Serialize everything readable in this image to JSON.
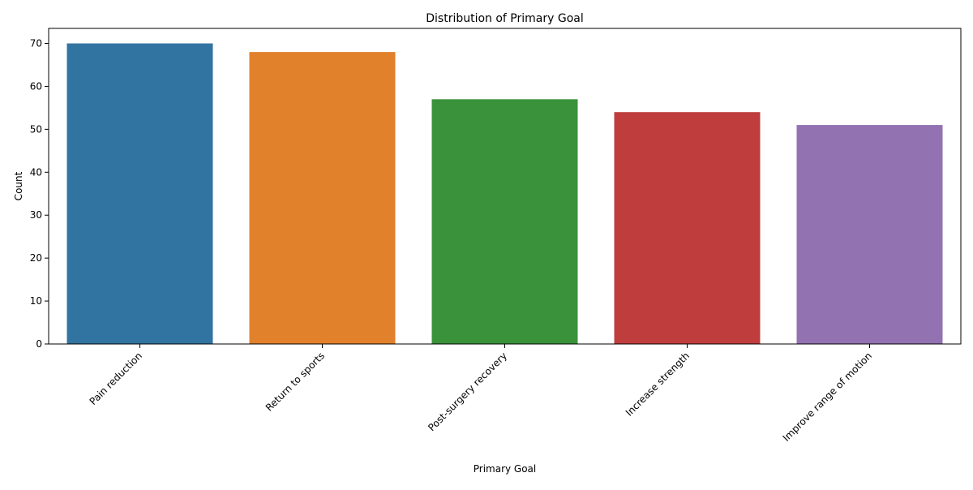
{
  "chart_data": {
    "type": "bar",
    "title": "Distribution of Primary Goal",
    "xlabel": "Primary Goal",
    "ylabel": "Count",
    "categories": [
      "Pain reduction",
      "Return to sports",
      "Post-surgery recovery",
      "Increase strength",
      "Improve range of motion"
    ],
    "values": [
      70,
      68,
      57,
      54,
      51
    ],
    "colors": [
      "#3274a1",
      "#e1812c",
      "#3a923a",
      "#c03d3e",
      "#9372b2"
    ],
    "ylim": [
      0,
      73.5
    ],
    "yticks": [
      0,
      10,
      20,
      30,
      40,
      50,
      60,
      70
    ],
    "grid": false,
    "legend": "none"
  }
}
